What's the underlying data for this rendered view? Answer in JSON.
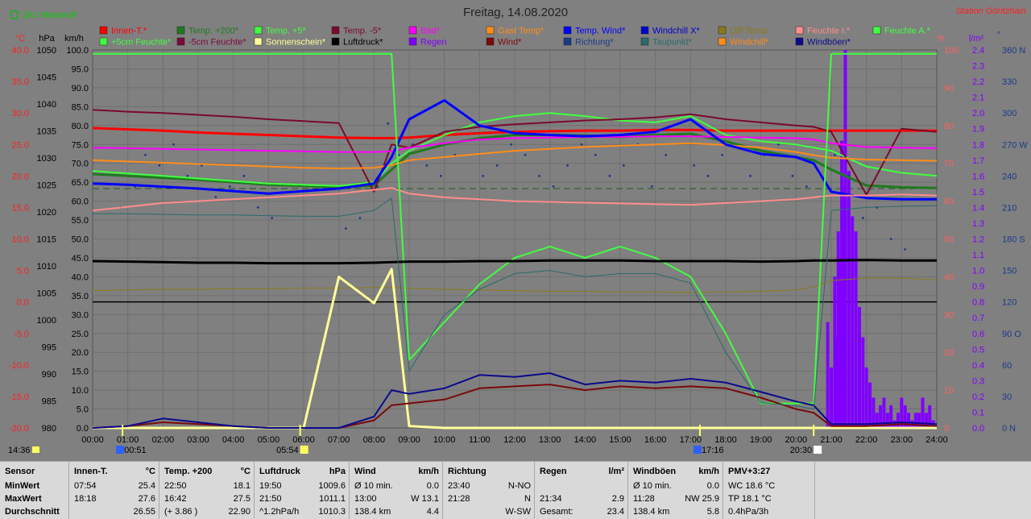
{
  "header": {
    "title": "Freitag, 14.08.2020",
    "station": "Station Göritzhain",
    "month_avg": "19.0 Monat-Ø"
  },
  "colors": {
    "background": "#808080",
    "innen": "#ff0000",
    "t200": "#1f7a1f",
    "t5": "#40ff40",
    "tm5": "#7a0a2a",
    "bad": "#ff00ff",
    "gast": "#ff8c1a",
    "tempwind": "#0000ff",
    "windchillx": "#0000cc",
    "difftemp": "#8c7a1a",
    "feuchte_i": "#ff8c8c",
    "feuchte_a": "#40ff40",
    "f5": "#40ff40",
    "fm5": "#7a0a3a",
    "sun": "#ffff99",
    "druck": "#000000",
    "regen": "#8000ff",
    "wind": "#7a0a0a",
    "richtung": "#1a3a8c",
    "taupunkt": "#2a6a6a",
    "windchill": "#ff8c1a",
    "windboeen": "#0a0a8c",
    "axis_c": "#ff2020",
    "axis_pct": "#ff6060",
    "axis_lm2": "#8000ff",
    "axis_dir": "#1a3a8c"
  },
  "legend": [
    {
      "label": "Innen-T.*",
      "color": "#ff0000"
    },
    {
      "label": "Temp. +200*",
      "color": "#1f7a1f"
    },
    {
      "label": "Temp. +5*",
      "color": "#40ff40"
    },
    {
      "label": "Temp. -5*",
      "color": "#7a0a2a"
    },
    {
      "label": "Bad*",
      "color": "#ff00ff"
    },
    {
      "label": "Gast Temp*",
      "color": "#ff8c1a"
    },
    {
      "label": "Temp. Wind*",
      "color": "#0000ff"
    },
    {
      "label": "Windchill X*",
      "color": "#0000cc"
    },
    {
      "label": "Diff Temp.",
      "color": "#8c7a1a"
    },
    {
      "label": "Feuchte I.*",
      "color": "#ff8c8c"
    },
    {
      "label": "Feuchte A.*",
      "color": "#40ff40"
    },
    {
      "label": "+5cm Feuchte*",
      "color": "#40ff40"
    },
    {
      "label": "-5cm Feuchte*",
      "color": "#7a0a3a"
    },
    {
      "label": "Sonnenschein*",
      "color": "#ffff99"
    },
    {
      "label": "Luftdruck*",
      "color": "#000000"
    },
    {
      "label": "Regen",
      "color": "#8000ff"
    },
    {
      "label": "Wind*",
      "color": "#7a0a0a"
    },
    {
      "label": "Richtung*",
      "color": "#1a3a8c"
    },
    {
      "label": "Taupunkt*",
      "color": "#2a6a6a"
    },
    {
      "label": "Windchill*",
      "color": "#ff8c1a"
    },
    {
      "label": "Windböen*",
      "color": "#0a0a8c"
    }
  ],
  "axes": {
    "unit_c": "°C",
    "unit_hpa": "hPa",
    "unit_kmh": "km/h",
    "unit_pct": "%",
    "unit_lm2": "l/m²",
    "unit_deg": "°",
    "ticks_c": [
      "40.0",
      "35.0",
      "30.0",
      "25.0",
      "20.0",
      "15.0",
      "10.0",
      "5.0",
      "0.0",
      "-5.0",
      "-10.0",
      "-15.0",
      "-20.0"
    ],
    "ticks_hpa": [
      "1050",
      "1045",
      "1040",
      "1035",
      "1030",
      "1025",
      "1020",
      "1015",
      "1010",
      "1005",
      "1000",
      "995",
      "990",
      "985",
      "980"
    ],
    "ticks_kmh": [
      "100.0",
      "95.0",
      "90.0",
      "85.0",
      "80.0",
      "75.0",
      "70.0",
      "65.0",
      "60.0",
      "55.0",
      "50.0",
      "45.0",
      "40.0",
      "35.0",
      "30.0",
      "25.0",
      "20.0",
      "15.0",
      "10.0",
      "5.0",
      "0.0"
    ],
    "ticks_pct": [
      "100",
      "90",
      "80",
      "70",
      "60",
      "50",
      "40",
      "30",
      "20",
      "10",
      "0"
    ],
    "ticks_lm2": [
      "2.4",
      "2.3",
      "2.2",
      "2.1",
      "2.0",
      "1.9",
      "1.8",
      "1.7",
      "1.6",
      "1.5",
      "1.4",
      "1.3",
      "1.2",
      "1.1",
      "1.0",
      "0.9",
      "0.8",
      "0.7",
      "0.6",
      "0.5",
      "0.4",
      "0.3",
      "0.2",
      "0.1",
      "0.0"
    ],
    "ticks_dir": [
      "360 N",
      "330",
      "300",
      "270 W",
      "240",
      "210",
      "180 S",
      "150",
      "120",
      "90 O",
      "60",
      "30",
      "0 N"
    ],
    "ticks_time": [
      "00:00",
      "01:00",
      "02:00",
      "03:00",
      "04:00",
      "05:00",
      "06:00",
      "07:00",
      "08:00",
      "09:00",
      "10:00",
      "11:00",
      "12:00",
      "13:00",
      "14:00",
      "15:00",
      "16:00",
      "17:00",
      "18:00",
      "19:00",
      "20:00",
      "21:00",
      "22:00",
      "23:00",
      "24:00"
    ]
  },
  "markers": {
    "now": "14:36",
    "moonrise": "00:51",
    "sunrise": "05:54",
    "moonset": "17:16",
    "sunset": "20:30"
  },
  "chart_data": {
    "type": "line",
    "title": "Freitag, 14.08.2020",
    "x": [
      0,
      1,
      2,
      3,
      4,
      5,
      6,
      7,
      8,
      8.5,
      9,
      10,
      11,
      12,
      13,
      14,
      15,
      16,
      17,
      18,
      19,
      20,
      20.5,
      21,
      22,
      23,
      24
    ],
    "xlim": [
      0,
      24
    ],
    "ylim_c": [
      -20,
      40
    ],
    "ylim_hpa": [
      980,
      1050
    ],
    "ylim_kmh": [
      0,
      100
    ],
    "ylim_pct": [
      0,
      100
    ],
    "ylim_lm2": [
      0,
      2.5
    ],
    "ylim_dir": [
      0,
      360
    ],
    "grid": true,
    "legend_position": "top",
    "series": [
      {
        "name": "Innen-T.*",
        "axis": "c",
        "color": "#ff0000",
        "width": 3,
        "values": [
          27.6,
          27.4,
          27.2,
          26.9,
          26.7,
          26.5,
          26.3,
          26.1,
          26.0,
          26.0,
          26.1,
          26.5,
          26.8,
          27.0,
          27.1,
          27.2,
          27.2,
          27.3,
          27.3,
          27.2,
          27.2,
          27.2,
          27.2,
          27.2,
          27.2,
          27.2,
          27.2
        ]
      },
      {
        "name": "Temp. +200*",
        "axis": "c",
        "color": "#1f7a1f",
        "width": 3,
        "values": [
          20.3,
          20.0,
          19.7,
          19.4,
          19.0,
          18.6,
          18.4,
          18.2,
          18.5,
          21.0,
          23.5,
          25.0,
          26.0,
          26.5,
          26.5,
          26.4,
          26.2,
          26.5,
          26.7,
          25.5,
          24.0,
          23.0,
          22.5,
          21.0,
          18.5,
          18.2,
          18.1
        ]
      },
      {
        "name": "Temp. +5*",
        "axis": "c",
        "color": "#40ff40",
        "width": 2,
        "values": [
          20.8,
          20.4,
          20.0,
          19.6,
          19.2,
          18.8,
          18.6,
          18.4,
          19.0,
          22.0,
          24.0,
          26.5,
          28.5,
          29.5,
          30.0,
          29.5,
          28.8,
          28.5,
          29.5,
          26.5,
          25.5,
          25.0,
          24.5,
          24.0,
          21.5,
          20.5,
          20.0
        ]
      },
      {
        "name": "Temp. -5*",
        "axis": "c",
        "color": "#7a0a2a",
        "width": 2,
        "values": [
          30.5,
          30.2,
          30.0,
          29.7,
          29.4,
          29.0,
          28.7,
          28.4,
          17.5,
          25.0,
          24.5,
          27.0,
          27.8,
          28.2,
          28.5,
          28.8,
          29.0,
          29.3,
          29.8,
          29.0,
          28.5,
          28.0,
          27.8,
          27.0,
          17.0,
          27.5,
          27.0
        ]
      },
      {
        "name": "Bad*",
        "axis": "c",
        "color": "#ff00ff",
        "width": 2,
        "values": [
          24.5,
          24.4,
          24.3,
          24.2,
          24.1,
          24.0,
          23.9,
          23.8,
          23.8,
          23.9,
          24.5,
          25.2,
          25.8,
          26.0,
          26.1,
          26.2,
          26.2,
          26.3,
          26.3,
          26.2,
          26.1,
          26.0,
          25.8,
          25.2,
          24.6,
          24.5,
          24.4
        ]
      },
      {
        "name": "Gast Temp*",
        "axis": "c",
        "color": "#ff8c1a",
        "width": 2,
        "values": [
          22.5,
          22.3,
          22.1,
          21.9,
          21.7,
          21.5,
          21.3,
          21.2,
          21.3,
          21.7,
          22.5,
          23.0,
          23.5,
          24.0,
          24.3,
          24.6,
          24.8,
          25.0,
          25.2,
          24.9,
          24.5,
          23.8,
          23.3,
          22.9,
          22.6,
          22.5,
          22.4
        ]
      },
      {
        "name": "Temp. Wind*",
        "axis": "c",
        "color": "#0000ff",
        "width": 3,
        "values": [
          18.8,
          18.6,
          18.3,
          18.0,
          17.6,
          17.2,
          17.6,
          18.0,
          18.8,
          23.0,
          29.0,
          32.0,
          28.0,
          26.8,
          26.5,
          26.3,
          26.5,
          27.0,
          29.0,
          25.0,
          23.5,
          23.0,
          22.0,
          17.5,
          16.5,
          16.3,
          16.3
        ]
      },
      {
        "name": "Diff Temp.",
        "axis": "c",
        "color": "#8c7a1a",
        "width": 1,
        "values": [
          1.8,
          1.9,
          2.0,
          2.0,
          2.1,
          2.1,
          2.2,
          2.2,
          2.3,
          2.3,
          2.2,
          2.0,
          1.9,
          1.8,
          1.7,
          1.7,
          1.6,
          1.6,
          1.5,
          1.6,
          1.7,
          1.9,
          2.4,
          3.4,
          3.8,
          3.8,
          3.5
        ]
      },
      {
        "name": "Feuchte I.*",
        "axis": "pct",
        "color": "#ff8c8c",
        "width": 2,
        "values": [
          57.5,
          58.5,
          59.5,
          60.0,
          60.5,
          61.0,
          61.5,
          62.0,
          63.0,
          63.5,
          62.0,
          61.0,
          60.5,
          60.0,
          59.8,
          59.6,
          59.4,
          59.2,
          59.0,
          59.5,
          60.0,
          60.5,
          61.0,
          61.5,
          61.5,
          61.8,
          61.5
        ]
      },
      {
        "name": "Feuchte A.*",
        "axis": "pct",
        "color": "#40ff40",
        "width": 2,
        "values": [
          99.0,
          99.0,
          99.0,
          99.0,
          99.0,
          99.0,
          99.0,
          99.0,
          99.0,
          99.0,
          18.0,
          28.0,
          38.0,
          45.0,
          48.0,
          45.0,
          48.0,
          45.0,
          40.0,
          25.0,
          6.5,
          6.5,
          6.5,
          99.0,
          99.0,
          99.0,
          99.0
        ]
      },
      {
        "name": "Luftdruck*",
        "axis": "hpa",
        "color": "#000000",
        "width": 3,
        "values": [
          1010.9,
          1010.8,
          1010.7,
          1010.6,
          1010.6,
          1010.5,
          1010.5,
          1010.5,
          1010.6,
          1010.7,
          1010.8,
          1010.8,
          1010.9,
          1010.9,
          1011.0,
          1011.0,
          1011.0,
          1010.9,
          1010.9,
          1010.9,
          1010.8,
          1010.9,
          1011.0,
          1011.0,
          1011.1,
          1011.0,
          1011.0
        ]
      },
      {
        "name": "Sonnenschein*",
        "axis": "kmh",
        "color": "#ffff99",
        "width": 3,
        "values": [
          0,
          0,
          0,
          0,
          0,
          0,
          0,
          40.0,
          33.0,
          42.0,
          0.5,
          0,
          0,
          0,
          0,
          0,
          0,
          0,
          0,
          0,
          0,
          0,
          0,
          0,
          0,
          0,
          0
        ]
      },
      {
        "name": "Wind*",
        "axis": "kmh",
        "color": "#7a0a0a",
        "width": 2,
        "values": [
          0,
          0.5,
          1.5,
          1.0,
          0.5,
          0,
          0,
          0,
          2.0,
          6.0,
          6.5,
          7.5,
          10.5,
          11.0,
          11.5,
          10.0,
          11.0,
          10.5,
          11.0,
          10.5,
          8.0,
          5.0,
          4.0,
          0.5,
          0.5,
          1.0,
          0.5
        ]
      },
      {
        "name": "Windböen*",
        "axis": "kmh",
        "color": "#0a0a8c",
        "width": 2,
        "values": [
          0,
          0.5,
          2.5,
          1.5,
          0.5,
          0,
          0,
          0,
          3.0,
          10.0,
          9.0,
          10.5,
          14.0,
          13.5,
          14.5,
          11.5,
          12.5,
          12.0,
          13.0,
          12.0,
          9.5,
          7.0,
          6.0,
          1.0,
          1.0,
          1.5,
          1.0
        ]
      },
      {
        "name": "Taupunkt*",
        "axis": "c",
        "color": "#2a6a6a",
        "width": 1,
        "values": [
          14.0,
          14.0,
          13.9,
          13.8,
          13.8,
          13.7,
          13.6,
          13.6,
          14.5,
          16.5,
          -11.0,
          -2.0,
          2.0,
          4.5,
          5.0,
          4.0,
          4.5,
          4.5,
          3.0,
          -8.0,
          -16.0,
          -16.5,
          -17.0,
          14.5,
          15.0,
          15.2,
          15.3
        ]
      }
    ],
    "rain": {
      "name": "Regen",
      "axis": "lm2",
      "color": "#8000ff",
      "x": [
        20.9,
        21.0,
        21.1,
        21.15,
        21.2,
        21.25,
        21.3,
        21.35,
        21.4,
        21.5,
        21.6,
        21.7,
        21.8,
        21.9,
        22.0,
        22.1,
        22.2,
        22.3,
        22.4,
        22.5,
        22.6,
        22.7,
        22.8,
        22.9,
        23.0,
        23.1,
        23.2,
        23.3,
        23.4,
        23.5,
        23.6,
        23.7,
        23.8,
        23.9
      ],
      "values": [
        0.7,
        0.4,
        1.0,
        0.6,
        1.3,
        1.1,
        1.9,
        1.6,
        2.5,
        1.7,
        1.4,
        1.3,
        0.8,
        0.6,
        0.4,
        0.3,
        0.2,
        0.1,
        0.15,
        0.2,
        0.1,
        0.15,
        0.05,
        0.1,
        0.2,
        0.15,
        0.1,
        0.05,
        0.1,
        0.1,
        0.2,
        0.1,
        0.15,
        0.05
      ]
    },
    "direction": {
      "name": "Richtung*",
      "axis": "dir",
      "color": "#1a3a8c",
      "x": [
        0.8,
        1.2,
        1.5,
        1.9,
        2.3,
        2.7,
        3.1,
        3.5,
        3.9,
        4.3,
        4.7,
        5.1,
        7.2,
        7.6,
        8.1,
        8.4,
        8.7,
        9.1,
        9.5,
        9.9,
        10.3,
        10.7,
        11.1,
        11.5,
        11.9,
        12.3,
        12.7,
        13.1,
        13.5,
        13.9,
        14.3,
        14.7,
        15.1,
        15.5,
        15.9,
        16.3,
        16.7,
        17.1,
        17.5,
        17.9,
        18.3,
        18.7,
        19.1,
        19.5,
        19.9,
        20.3,
        20.7,
        21.1,
        21.5,
        21.9,
        22.3,
        22.7,
        23.1
      ],
      "values": [
        210,
        230,
        260,
        250,
        270,
        240,
        250,
        220,
        230,
        240,
        210,
        200,
        190,
        200,
        230,
        290,
        260,
        270,
        250,
        240,
        260,
        280,
        240,
        250,
        270,
        260,
        240,
        230,
        250,
        270,
        260,
        240,
        250,
        270,
        230,
        260,
        280,
        250,
        240,
        260,
        270,
        240,
        260,
        270,
        240,
        230,
        220,
        260,
        240,
        200,
        210,
        180,
        170
      ]
    }
  },
  "stats": {
    "row_labels": [
      "Sensor",
      "MinWert",
      "MaxWert",
      "Durchschnitt"
    ],
    "columns": [
      {
        "title": "Innen-T.",
        "unit": "°C",
        "rows": [
          [
            "07:54",
            "25.4"
          ],
          [
            "18:18",
            "27.6"
          ],
          [
            "",
            "26.55"
          ]
        ]
      },
      {
        "title": "Temp. +200",
        "unit": "°C",
        "rows": [
          [
            "22:50",
            "18.1"
          ],
          [
            "16:42",
            "27.5"
          ],
          [
            "(+ 3.86 )",
            "22.90"
          ]
        ]
      },
      {
        "title": "Luftdruck",
        "unit": "hPa",
        "rows": [
          [
            "19:50",
            "1009.6"
          ],
          [
            "21:50",
            "1011.1"
          ],
          [
            "^1.2hPa/h",
            "1010.3"
          ]
        ]
      },
      {
        "title": "Wind",
        "unit": "km/h",
        "rows": [
          [
            "Ø 10 min.",
            "0.0"
          ],
          [
            "13:00",
            "W 13.1"
          ],
          [
            "138.4 km",
            "4.4"
          ]
        ]
      },
      {
        "title": "Richtung",
        "unit": "",
        "rows": [
          [
            "23:40",
            "N-NO"
          ],
          [
            "21:28",
            "N"
          ],
          [
            "",
            "W-SW"
          ]
        ]
      },
      {
        "title": "Regen",
        "unit": "l/m²",
        "rows": [
          [
            "",
            ""
          ],
          [
            "21:34",
            "2.9"
          ],
          [
            "Gesamt:",
            "23.4"
          ]
        ]
      },
      {
        "title": "Windböen",
        "unit": "km/h",
        "rows": [
          [
            "Ø 10 min.",
            "0.0"
          ],
          [
            "11:28",
            "NW 25.9"
          ],
          [
            "138.4 km",
            "5.8"
          ]
        ]
      },
      {
        "title": "PMV+3:27",
        "unit": "",
        "rows": [
          [
            "WC 18.6 °C",
            ""
          ],
          [
            "TP 18.1 °C",
            ""
          ],
          [
            "0.4hPa/3h",
            ""
          ]
        ]
      }
    ]
  }
}
